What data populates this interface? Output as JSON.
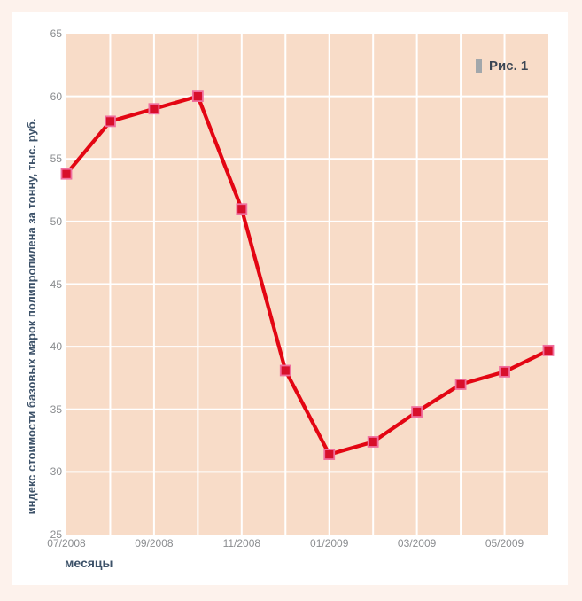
{
  "window": {
    "page_bg": "#fdf2ec",
    "panel_bg": "#ffffff"
  },
  "legend": {
    "label": "Рис. 1",
    "bullet_color": "#a2a7ab",
    "text_color": "#3b4654"
  },
  "chart_data": {
    "type": "line",
    "categories": [
      "07/2008",
      "08/2008",
      "09/2008",
      "10/2008",
      "11/2008",
      "12/2008",
      "01/2009",
      "02/2009",
      "03/2009",
      "04/2009",
      "05/2009",
      "06/2009"
    ],
    "values": [
      53.8,
      58,
      59,
      60,
      51,
      38.1,
      31.4,
      32.4,
      34.8,
      37,
      38,
      39.7
    ],
    "xlabel": "месяцы",
    "ylabel": "индекс стоимости базовых марок полипропилена за тонну, тыс. руб.",
    "ylim": [
      25,
      65
    ],
    "y_ticks": [
      65,
      60,
      55,
      50,
      45,
      40,
      35,
      30,
      25
    ],
    "x_ticks_shown": [
      "07/2008",
      "09/2008",
      "11/2008",
      "01/2009",
      "03/2009",
      "05/2009"
    ],
    "grid": true,
    "legend_position": "top-right",
    "colors": {
      "line": "#e30613",
      "marker_fill": "#d80f2b",
      "marker_stroke": "#ef6f9e",
      "plot_bg": "#f8dcc8",
      "grid": "#ffffff",
      "tick_text": "#8b8d90",
      "axis_title_text": "#3d5269"
    }
  }
}
